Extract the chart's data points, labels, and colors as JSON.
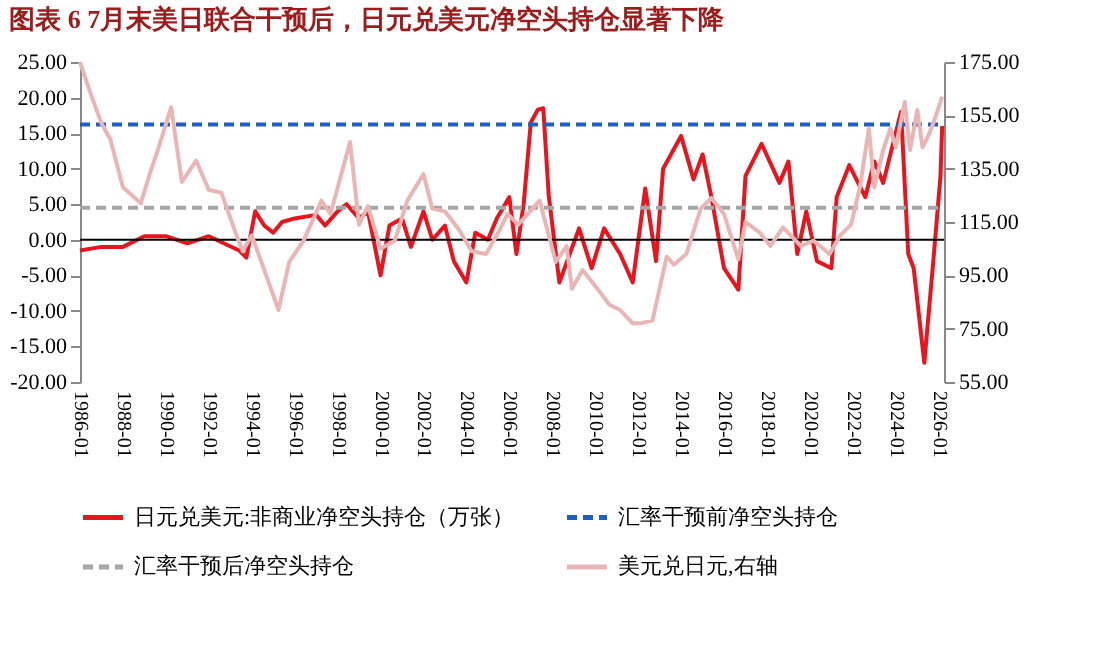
{
  "chart_data": {
    "type": "line",
    "title": "图表 6   7月末美日联合干预后，日元兑美元净空头持仓显著下降",
    "xlim": [
      "1986-01",
      "2026-04"
    ],
    "xticks": [
      "1986-01",
      "1988-01",
      "1990-01",
      "1992-01",
      "1994-01",
      "1996-01",
      "1998-01",
      "2000-01",
      "2002-01",
      "2004-01",
      "2006-01",
      "2008-01",
      "2010-01",
      "2012-01",
      "2014-01",
      "2016-01",
      "2018-01",
      "2020-01",
      "2022-01",
      "2024-01",
      "2026-01"
    ],
    "ylim": [
      -20,
      25
    ],
    "yticks": [
      {
        "value": -20,
        "label": "-20.00"
      },
      {
        "value": -15,
        "label": "-15.00"
      },
      {
        "value": -10,
        "label": "-10.00"
      },
      {
        "value": -5,
        "label": "-5.00"
      },
      {
        "value": 0,
        "label": "0.00"
      },
      {
        "value": 5,
        "label": "5.00"
      },
      {
        "value": 10,
        "label": "10.00"
      },
      {
        "value": 15,
        "label": "15.00"
      },
      {
        "value": 20,
        "label": "20.00"
      },
      {
        "value": 25,
        "label": "25.00"
      }
    ],
    "y2lim": [
      55,
      175
    ],
    "y2ticks": [
      {
        "value": 55,
        "label": "55.00"
      },
      {
        "value": 75,
        "label": "75.00"
      },
      {
        "value": 95,
        "label": "95.00"
      },
      {
        "value": 115,
        "label": "115.00"
      },
      {
        "value": 135,
        "label": "135.00"
      },
      {
        "value": 155,
        "label": "155.00"
      },
      {
        "value": 175,
        "label": "175.00"
      }
    ],
    "legend": "bottom",
    "ref_lines": [
      {
        "axis": "y",
        "value": 0,
        "color": "#000000"
      }
    ],
    "series": [
      {
        "name": "日元兑美元:非商业净空头持仓（万张）",
        "color": "#e8141e",
        "line_style": "solid",
        "x": [
          "1986-01",
          "1987-01",
          "1988-01",
          "1989-01",
          "1990-01",
          "1991-01",
          "1992-01",
          "1993-06",
          "1993-10",
          "1994-03",
          "1994-08",
          "1995-01",
          "1995-06",
          "1996-01",
          "1997-01",
          "1997-06",
          "1998-01",
          "1998-06",
          "1999-01",
          "1999-06",
          "2000-01",
          "2000-06",
          "2001-01",
          "2001-06",
          "2002-01",
          "2002-06",
          "2003-01",
          "2003-06",
          "2004-01",
          "2004-06",
          "2005-01",
          "2005-06",
          "2006-01",
          "2006-05",
          "2006-09",
          "2007-01",
          "2007-05",
          "2007-08",
          "2007-11",
          "2008-05",
          "2009-04",
          "2009-11",
          "2010-06",
          "2011-03",
          "2011-10",
          "2012-05",
          "2012-11",
          "2013-03",
          "2014-01",
          "2014-08",
          "2015-01",
          "2015-06",
          "2016-01",
          "2016-09",
          "2017-01",
          "2017-10",
          "2018-08",
          "2019-01",
          "2019-06",
          "2019-11",
          "2020-05",
          "2021-01",
          "2021-04",
          "2021-11",
          "2022-08",
          "2023-01",
          "2023-06",
          "2024-04",
          "2024-08",
          "2024-11",
          "2025-05",
          "2025-10",
          "2026-02",
          "2026-03"
        ],
        "values": [
          -1.5,
          -1,
          -1,
          0.5,
          0.5,
          -0.5,
          0.5,
          -1.5,
          -2.5,
          4,
          2,
          1,
          2.5,
          3,
          3.5,
          2,
          4,
          5,
          3,
          4,
          -5,
          2,
          3,
          -1,
          4,
          0,
          2,
          -3,
          -6,
          1,
          0,
          3,
          6,
          -2,
          5,
          16.5,
          18.3,
          18.5,
          6.3,
          -6,
          1.6,
          -4,
          1.6,
          -2,
          -6,
          7.2,
          -3,
          10,
          14.6,
          8.5,
          12,
          6,
          -4,
          -7,
          9,
          13.5,
          8,
          11,
          -2,
          4,
          -3,
          -4,
          6,
          10.5,
          6,
          11,
          8,
          18,
          -2,
          -4,
          -17.3,
          -3,
          9,
          16
        ]
      },
      {
        "name": "汇率干预前净空头持仓",
        "color": "#1f5fbf",
        "line_style": "dashed",
        "x": [
          "1986-01",
          "2026-04"
        ],
        "values": [
          16.2,
          16.2
        ]
      },
      {
        "name": "汇率干预后净空头持仓",
        "color": "#a6a6a6",
        "line_style": "dashed",
        "x": [
          "1986-01",
          "2026-04"
        ],
        "values": [
          4.5,
          4.5
        ]
      },
      {
        "name": "美元兑日元,右轴",
        "color": "#e9b5b5",
        "line_style": "solid",
        "axis": "y2",
        "x": [
          "1986-01",
          "1986-06",
          "1987-01",
          "1987-06",
          "1988-01",
          "1988-11",
          "1989-04",
          "1989-09",
          "1990-04",
          "1990-10",
          "1991-06",
          "1992-01",
          "1992-08",
          "1993-04",
          "1993-08",
          "1994-01",
          "1994-07",
          "1995-04",
          "1995-10",
          "1996-06",
          "1997-04",
          "1997-09",
          "1998-08",
          "1999-01",
          "1999-06",
          "2000-01",
          "2000-09",
          "2001-04",
          "2002-01",
          "2002-06",
          "2003-01",
          "2003-09",
          "2004-04",
          "2004-12",
          "2005-06",
          "2005-12",
          "2006-06",
          "2007-06",
          "2008-03",
          "2008-09",
          "2008-12",
          "2009-06",
          "2010-01",
          "2010-09",
          "2011-03",
          "2011-10",
          "2012-02",
          "2012-09",
          "2013-05",
          "2013-09",
          "2014-04",
          "2014-12",
          "2015-06",
          "2016-01",
          "2016-09",
          "2017-01",
          "2017-09",
          "2018-03",
          "2018-10",
          "2019-08",
          "2020-03",
          "2020-12",
          "2021-06",
          "2021-12",
          "2022-05",
          "2022-10",
          "2023-01",
          "2023-06",
          "2023-10",
          "2024-01",
          "2024-06",
          "2024-09",
          "2025-01",
          "2025-04",
          "2025-07",
          "2025-10",
          "2026-01",
          "2026-03"
        ],
        "values": [
          175,
          165,
          152,
          146,
          128,
          122,
          133,
          143,
          158,
          130,
          138,
          127,
          126,
          111,
          104,
          110,
          99,
          82,
          100,
          108,
          123,
          118,
          145,
          114,
          121,
          105,
          108,
          123,
          133,
          120,
          119,
          112,
          104,
          103,
          110,
          118,
          114,
          123,
          100,
          106,
          90,
          97,
          91,
          84,
          82,
          77,
          77,
          78,
          102,
          99,
          103,
          120,
          124,
          118,
          101,
          115,
          111,
          106,
          113,
          106,
          108,
          103,
          110,
          114,
          128,
          150,
          128,
          142,
          150,
          143,
          160,
          142,
          157,
          143,
          147,
          152,
          158,
          162
        ]
      }
    ]
  }
}
